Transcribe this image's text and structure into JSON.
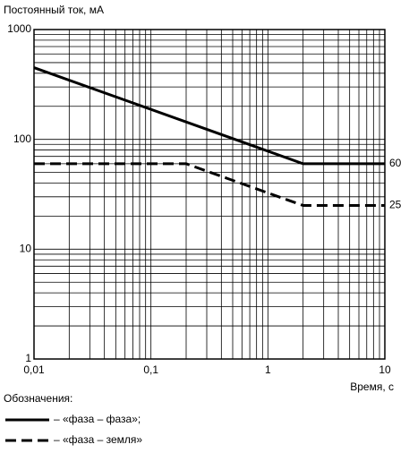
{
  "chart_data": {
    "type": "line",
    "y_label": "Постоянный ток, мА",
    "x_label": "Время, с",
    "xscale": "log",
    "yscale": "log",
    "grid": true,
    "xlim": [
      0.01,
      10
    ],
    "ylim": [
      1,
      1000
    ],
    "xticks": [
      {
        "value": 0.01,
        "label": "0,01"
      },
      {
        "value": 0.1,
        "label": "0,1"
      },
      1,
      10
    ],
    "yticks": [
      1,
      10,
      100,
      1000
    ],
    "legend_title": "Обозначения:",
    "series": [
      {
        "name": "– «фаза – фаза»;",
        "color": "#000000",
        "linestyle": "solid",
        "x": [
          0.01,
          2,
          10
        ],
        "values": [
          450,
          60,
          60
        ]
      },
      {
        "name": "– «фаза – земля»",
        "color": "#000000",
        "linestyle": "dashed",
        "x": [
          0.01,
          0.2,
          2,
          10
        ],
        "values": [
          60,
          60,
          25,
          25
        ]
      }
    ],
    "annotations": [
      {
        "label": "60",
        "y": 60
      },
      {
        "label": "25",
        "y": 25
      }
    ]
  }
}
